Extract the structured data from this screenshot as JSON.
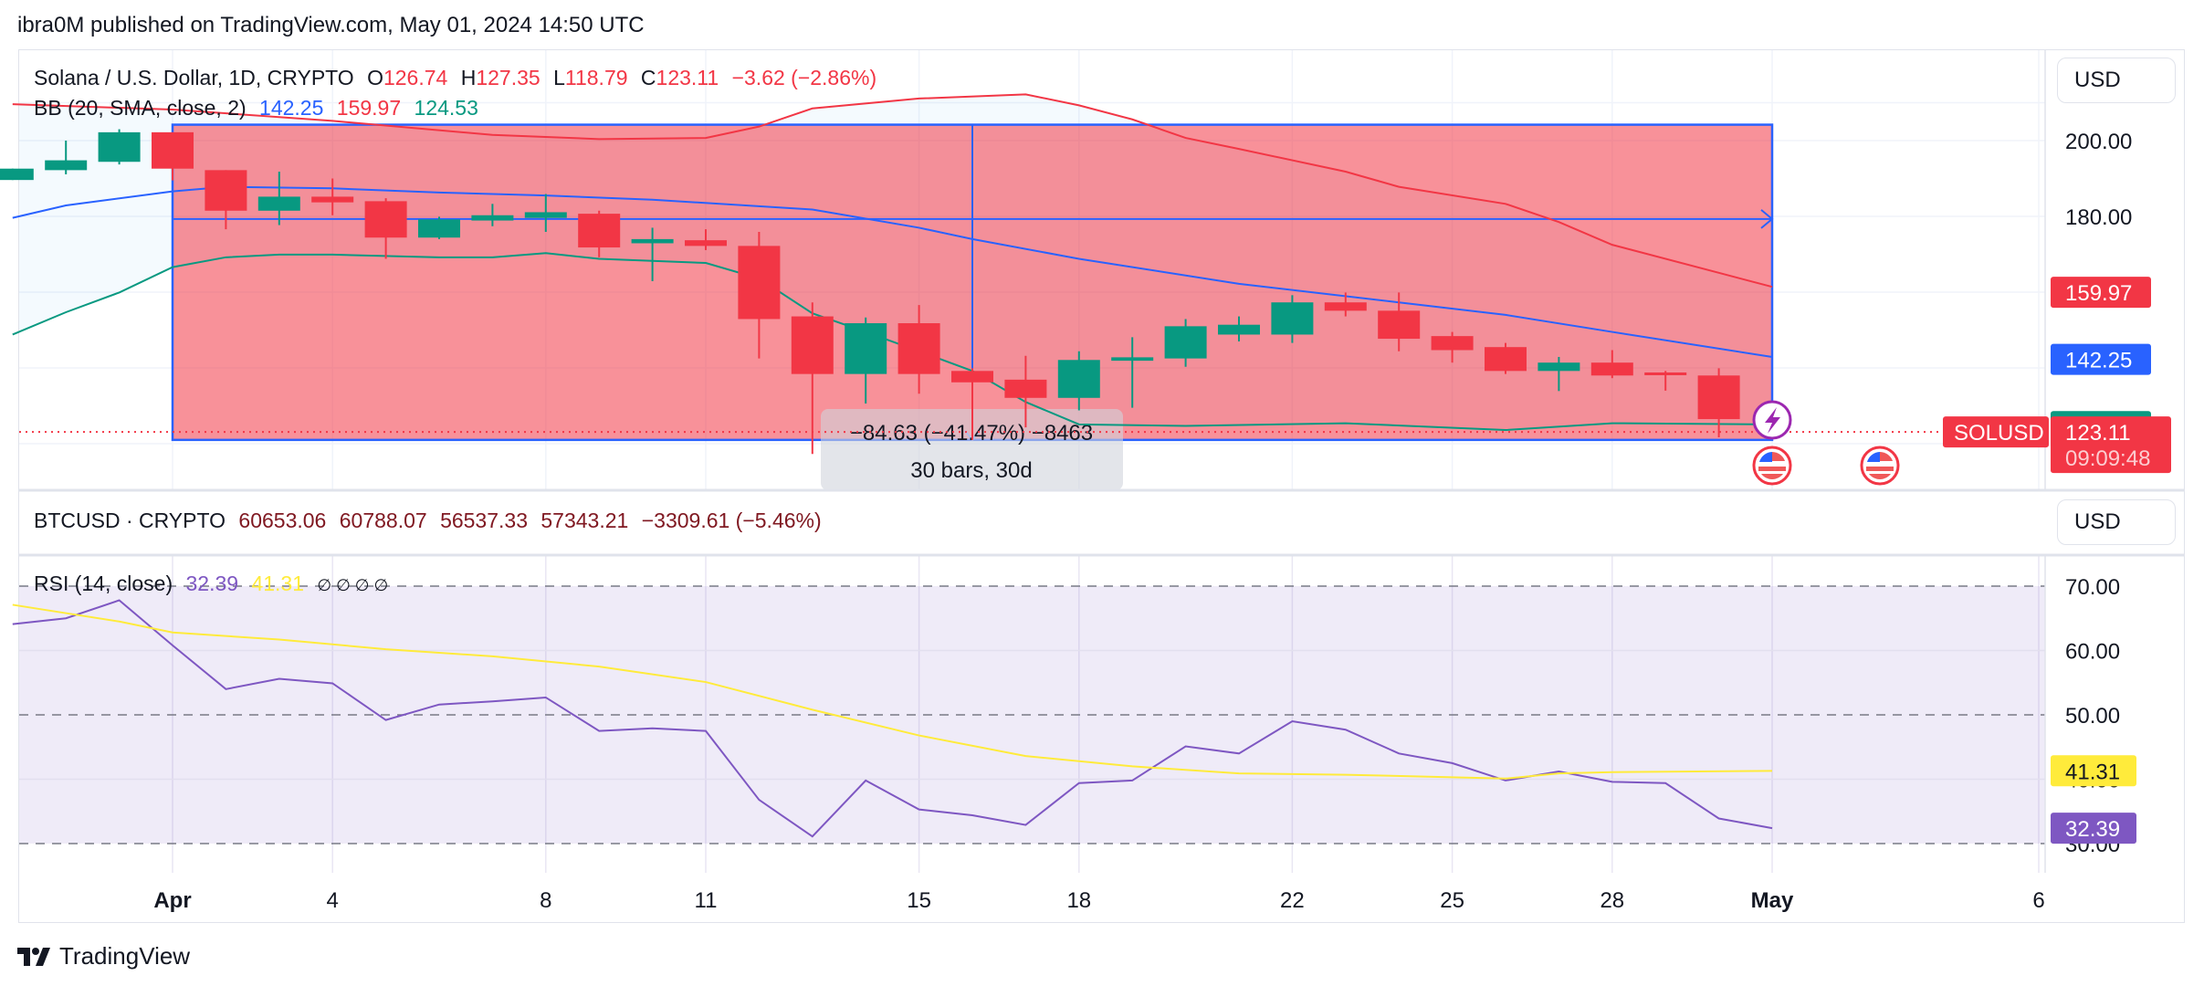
{
  "header": {
    "published": "ibra0M published on TradingView.com, May 01, 2024 14:50 UTC"
  },
  "main_legend": {
    "symbol": "Solana / U.S. Dollar, 1D, CRYPTO",
    "o_label": "O",
    "o": "126.74",
    "h_label": "H",
    "h": "127.35",
    "l_label": "L",
    "l": "118.79",
    "c_label": "C",
    "c": "123.11",
    "change": "−3.62 (−2.86%)",
    "bb_label": "BB (20, SMA, close, 2)",
    "bb_basis": "142.25",
    "bb_upper": "159.97",
    "bb_lower": "124.53"
  },
  "btc_legend": {
    "symbol": "BTCUSD · CRYPTO",
    "open": "60653.06",
    "high": "60788.07",
    "low": "56537.33",
    "close": "57343.21",
    "change": "−3309.61 (−5.46%)"
  },
  "rsi_legend": {
    "label": "RSI (14, close)",
    "rsi": "32.39",
    "ma": "41.31",
    "extras": "∅ ∅ ∅ ∅"
  },
  "currency_buttons": {
    "main": "USD",
    "btc": "USD"
  },
  "price_axis": {
    "ticks": [
      "200.00",
      "180.00"
    ],
    "badges": [
      {
        "label": "159.97",
        "color": "#f23645",
        "value": 159.97
      },
      {
        "label": "142.25",
        "color": "#2962ff",
        "value": 142.25
      },
      {
        "label": "124.53",
        "color": "#089981",
        "value": 124.53
      }
    ],
    "last_price": "123.11",
    "countdown": "09:09:48",
    "symbol_tag": "SOLUSD"
  },
  "rsi_axis": {
    "ticks": [
      "70.00",
      "60.00",
      "50.00",
      "40.00",
      "30.00"
    ],
    "badges": [
      {
        "label": "41.31",
        "color": "#ffeb3b",
        "text_color": "#131722",
        "value": 41.31
      },
      {
        "label": "32.39",
        "color": "#7e57c2",
        "text_color": "#ffffff",
        "value": 32.39
      }
    ]
  },
  "time_axis": {
    "labels": [
      {
        "text": "Apr",
        "day": 0,
        "bold": true
      },
      {
        "text": "4",
        "day": 3
      },
      {
        "text": "8",
        "day": 7
      },
      {
        "text": "11",
        "day": 10
      },
      {
        "text": "15",
        "day": 14
      },
      {
        "text": "18",
        "day": 17
      },
      {
        "text": "22",
        "day": 21
      },
      {
        "text": "25",
        "day": 24
      },
      {
        "text": "28",
        "day": 27
      },
      {
        "text": "May",
        "day": 30,
        "bold": true
      },
      {
        "text": "6",
        "day": 35
      }
    ]
  },
  "measure": {
    "line1": "−84.63 (−41.47%) −8463",
    "line2": "30 bars, 30d"
  },
  "footer": {
    "brand": "TradingView"
  },
  "colors": {
    "up": "#089981",
    "down": "#f23645",
    "bb_upper": "#f23645",
    "bb_basis": "#2962ff",
    "bb_lower": "#089981",
    "rsi": "#7e57c2",
    "rsi_ma": "#ffeb3b",
    "measure_fill": "#f23645",
    "measure_border": "#2962ff"
  },
  "chart_data": [
    {
      "type": "candlestick",
      "title": "Solana / U.S. Dollar, 1D, CRYPTO",
      "ylabel": "USD",
      "ylim": [
        112,
        210
      ],
      "x_day0": "Apr 1",
      "candles": [
        {
          "d": -3,
          "o": 189.6,
          "h": 192.6,
          "l": 189.6,
          "c": 192.6
        },
        {
          "d": -2,
          "o": 192.2,
          "h": 200.0,
          "l": 191.1,
          "c": 194.8
        },
        {
          "d": -1,
          "o": 194.4,
          "h": 203.0,
          "l": 193.7,
          "c": 202.2
        },
        {
          "d": 0,
          "o": 202.2,
          "h": 202.2,
          "l": 189.5,
          "c": 192.6
        },
        {
          "d": 1,
          "o": 192.2,
          "h": 192.2,
          "l": 176.6,
          "c": 181.5
        },
        {
          "d": 2,
          "o": 181.5,
          "h": 191.8,
          "l": 177.7,
          "c": 185.2
        },
        {
          "d": 3,
          "o": 185.2,
          "h": 190.0,
          "l": 180.3,
          "c": 183.7
        },
        {
          "d": 4,
          "o": 184.0,
          "h": 184.8,
          "l": 168.8,
          "c": 174.4
        },
        {
          "d": 5,
          "o": 174.4,
          "h": 179.9,
          "l": 174.0,
          "c": 179.2
        },
        {
          "d": 6,
          "o": 178.9,
          "h": 183.3,
          "l": 177.4,
          "c": 180.3
        },
        {
          "d": 7,
          "o": 179.6,
          "h": 185.9,
          "l": 175.9,
          "c": 181.1
        },
        {
          "d": 8,
          "o": 180.7,
          "h": 181.5,
          "l": 169.2,
          "c": 171.8
        },
        {
          "d": 9,
          "o": 172.9,
          "h": 177.0,
          "l": 162.9,
          "c": 174.0
        },
        {
          "d": 10,
          "o": 173.7,
          "h": 176.6,
          "l": 171.1,
          "c": 172.2
        },
        {
          "d": 11,
          "o": 172.2,
          "h": 175.9,
          "l": 142.5,
          "c": 152.9
        },
        {
          "d": 12,
          "o": 153.6,
          "h": 157.3,
          "l": 117.3,
          "c": 138.4
        },
        {
          "d": 13,
          "o": 138.4,
          "h": 153.3,
          "l": 130.6,
          "c": 151.8
        },
        {
          "d": 14,
          "o": 151.8,
          "h": 156.6,
          "l": 133.2,
          "c": 138.4
        },
        {
          "d": 15,
          "o": 139.2,
          "h": 139.9,
          "l": 121.0,
          "c": 136.2
        },
        {
          "d": 16,
          "o": 136.9,
          "h": 143.2,
          "l": 124.3,
          "c": 132.1
        },
        {
          "d": 17,
          "o": 132.1,
          "h": 144.4,
          "l": 128.8,
          "c": 142.1
        },
        {
          "d": 18,
          "o": 141.9,
          "h": 148.1,
          "l": 129.5,
          "c": 142.8
        },
        {
          "d": 19,
          "o": 142.5,
          "h": 152.9,
          "l": 140.3,
          "c": 151.0
        },
        {
          "d": 20,
          "o": 148.8,
          "h": 153.6,
          "l": 147.0,
          "c": 151.4
        },
        {
          "d": 21,
          "o": 148.8,
          "h": 159.2,
          "l": 146.6,
          "c": 157.3
        },
        {
          "d": 22,
          "o": 157.3,
          "h": 159.9,
          "l": 153.6,
          "c": 155.1
        },
        {
          "d": 23,
          "o": 155.1,
          "h": 159.9,
          "l": 144.4,
          "c": 147.7
        },
        {
          "d": 24,
          "o": 148.4,
          "h": 149.5,
          "l": 141.4,
          "c": 144.7
        },
        {
          "d": 25,
          "o": 145.5,
          "h": 146.6,
          "l": 138.4,
          "c": 139.2
        },
        {
          "d": 26,
          "o": 139.2,
          "h": 142.9,
          "l": 133.9,
          "c": 141.4
        },
        {
          "d": 27,
          "o": 141.4,
          "h": 144.7,
          "l": 137.3,
          "c": 138.0
        },
        {
          "d": 28,
          "o": 138.8,
          "h": 139.2,
          "l": 134.0,
          "c": 138.4
        },
        {
          "d": 29,
          "o": 138.0,
          "h": 139.9,
          "l": 121.7,
          "c": 126.5
        }
      ],
      "bollinger": {
        "upper": [
          [
            -3.0,
            209.6
          ],
          [
            0,
            208.2
          ],
          [
            3,
            205.2
          ],
          [
            6,
            201.5
          ],
          [
            8,
            200.4
          ],
          [
            10,
            200.7
          ],
          [
            11,
            203.7
          ],
          [
            12,
            208.5
          ],
          [
            14,
            211.1
          ],
          [
            16,
            212.2
          ],
          [
            17,
            209.3
          ],
          [
            18,
            205.6
          ],
          [
            19,
            200.7
          ],
          [
            20,
            197.8
          ],
          [
            22,
            191.8
          ],
          [
            23,
            187.8
          ],
          [
            25,
            183.3
          ],
          [
            26,
            178.5
          ],
          [
            27,
            172.5
          ],
          [
            29,
            165.1
          ],
          [
            30,
            161.4
          ]
        ],
        "basis": [
          [
            -3.0,
            179.6
          ],
          [
            -2,
            182.9
          ],
          [
            0,
            186.6
          ],
          [
            1,
            187.8
          ],
          [
            3,
            187.4
          ],
          [
            5,
            186.3
          ],
          [
            7,
            185.5
          ],
          [
            9,
            184.4
          ],
          [
            12,
            181.8
          ],
          [
            14,
            177.0
          ],
          [
            15,
            174.0
          ],
          [
            17,
            168.8
          ],
          [
            20,
            162.2
          ],
          [
            23,
            157.3
          ],
          [
            25,
            154.0
          ],
          [
            27,
            149.5
          ],
          [
            30,
            142.9
          ]
        ],
        "lower": [
          [
            -3.0,
            148.8
          ],
          [
            -2,
            154.7
          ],
          [
            -1,
            159.9
          ],
          [
            0,
            166.6
          ],
          [
            1,
            169.2
          ],
          [
            2,
            169.9
          ],
          [
            3,
            169.9
          ],
          [
            5,
            169.2
          ],
          [
            6,
            169.2
          ],
          [
            7,
            170.3
          ],
          [
            8,
            168.8
          ],
          [
            10,
            167.7
          ],
          [
            11,
            163.6
          ],
          [
            12,
            154.4
          ],
          [
            13,
            149.5
          ],
          [
            14,
            144.4
          ],
          [
            15,
            139.2
          ],
          [
            16,
            131.0
          ],
          [
            17,
            125.1
          ],
          [
            19,
            124.7
          ],
          [
            22,
            125.4
          ],
          [
            25,
            123.6
          ],
          [
            27,
            125.4
          ],
          [
            30,
            125.1
          ]
        ]
      },
      "measure_box": {
        "from_day": 0,
        "to_day": 30,
        "top": 204.2,
        "bottom": 121.0,
        "mid": 179.3,
        "change": -84.63,
        "change_pct": -41.47,
        "bars": 30
      }
    },
    {
      "type": "line",
      "title": "RSI (14, close)",
      "ylim": [
        26,
        72
      ],
      "bands": [
        70,
        50,
        30
      ],
      "series": [
        {
          "name": "RSI",
          "color": "#7e57c2",
          "points": [
            [
              -3,
              64.1
            ],
            [
              -2,
              65.0
            ],
            [
              -1,
              67.8
            ],
            [
              0,
              60.8
            ],
            [
              1,
              54.0
            ],
            [
              2,
              55.6
            ],
            [
              3,
              54.9
            ],
            [
              4,
              49.2
            ],
            [
              5,
              51.6
            ],
            [
              6,
              52.1
            ],
            [
              7,
              52.7
            ],
            [
              8,
              47.5
            ],
            [
              9,
              47.9
            ],
            [
              10,
              47.5
            ],
            [
              11,
              36.8
            ],
            [
              12,
              31.1
            ],
            [
              13,
              39.8
            ],
            [
              14,
              35.3
            ],
            [
              15,
              34.4
            ],
            [
              16,
              32.9
            ],
            [
              17,
              39.4
            ],
            [
              18,
              39.8
            ],
            [
              19,
              45.1
            ],
            [
              20,
              44.0
            ],
            [
              21,
              49.0
            ],
            [
              22,
              47.7
            ],
            [
              23,
              44.0
            ],
            [
              24,
              42.5
            ],
            [
              25,
              39.8
            ],
            [
              26,
              41.2
            ],
            [
              27,
              39.6
            ],
            [
              28,
              39.4
            ],
            [
              29,
              33.9
            ],
            [
              30,
              32.4
            ]
          ]
        },
        {
          "name": "RSI-based MA",
          "color": "#ffeb3b",
          "points": [
            [
              -3,
              67.1
            ],
            [
              -1,
              64.5
            ],
            [
              0,
              62.8
            ],
            [
              2,
              61.7
            ],
            [
              4,
              60.2
            ],
            [
              6,
              59.1
            ],
            [
              8,
              57.5
            ],
            [
              10,
              55.1
            ],
            [
              12,
              50.8
            ],
            [
              14,
              46.8
            ],
            [
              16,
              43.6
            ],
            [
              18,
              42.0
            ],
            [
              20,
              40.9
            ],
            [
              22,
              40.7
            ],
            [
              24,
              40.3
            ],
            [
              25,
              40.1
            ],
            [
              26,
              40.9
            ],
            [
              27,
              41.1
            ],
            [
              30,
              41.3
            ]
          ]
        }
      ]
    }
  ]
}
